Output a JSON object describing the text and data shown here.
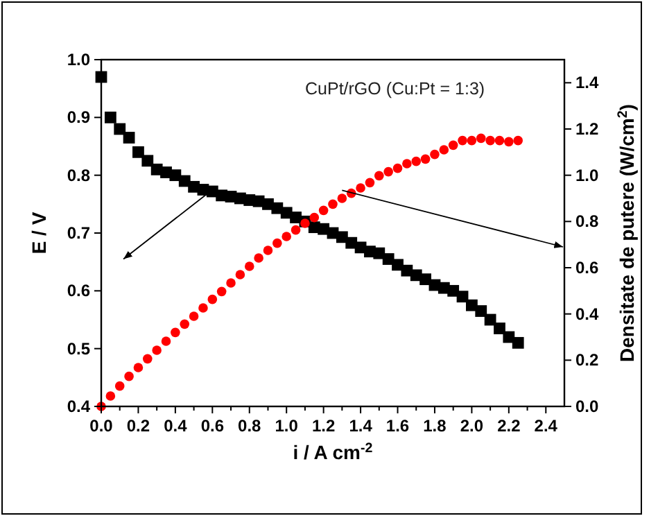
{
  "chart_data": {
    "type": "scatter",
    "xlabel": "i / A cm$^{-2}$",
    "ylabel": "E / V",
    "y2label": "Densitate de putere (W/cm$^{2}$)",
    "annotations": [
      "CuPt/rGO (Cu:Pt = 1:3)"
    ],
    "x": [
      0,
      0.05,
      0.1,
      0.15,
      0.2,
      0.25,
      0.3,
      0.35,
      0.4,
      0.45,
      0.5,
      0.55,
      0.6,
      0.65,
      0.7,
      0.75,
      0.8,
      0.85,
      0.9,
      0.95,
      1.0,
      1.05,
      1.1,
      1.15,
      1.2,
      1.25,
      1.3,
      1.35,
      1.4,
      1.45,
      1.5,
      1.55,
      1.6,
      1.65,
      1.7,
      1.75,
      1.8,
      1.85,
      1.9,
      1.95,
      2.0,
      2.05,
      2.1,
      2.15,
      2.2,
      2.25
    ],
    "series": [
      {
        "color": "#000000",
        "marker": "square",
        "values": [
          0.97,
          0.9,
          0.88,
          0.865,
          0.84,
          0.825,
          0.81,
          0.805,
          0.8,
          0.79,
          0.78,
          0.775,
          0.772,
          0.765,
          0.763,
          0.76,
          0.757,
          0.755,
          0.75,
          0.743,
          0.735,
          0.727,
          0.72,
          0.71,
          0.707,
          0.7,
          0.693,
          0.683,
          0.675,
          0.668,
          0.665,
          0.655,
          0.645,
          0.635,
          0.627,
          0.62,
          0.61,
          0.605,
          0.6,
          0.59,
          0.575,
          0.565,
          0.55,
          0.535,
          0.52,
          0.51
        ]
      },
      {
        "color": "#ff0000",
        "marker": "circle",
        "axis": "y2",
        "values": [
          0,
          0.045,
          0.088,
          0.13,
          0.168,
          0.206,
          0.243,
          0.282,
          0.32,
          0.356,
          0.39,
          0.426,
          0.463,
          0.497,
          0.534,
          0.57,
          0.606,
          0.642,
          0.675,
          0.706,
          0.735,
          0.763,
          0.792,
          0.817,
          0.848,
          0.875,
          0.9,
          0.922,
          0.945,
          0.968,
          0.998,
          1.015,
          1.03,
          1.05,
          1.06,
          1.07,
          1.09,
          1.11,
          1.13,
          1.15,
          1.15,
          1.16,
          1.15,
          1.15,
          1.145,
          1.15
        ]
      }
    ],
    "xlim": [
      0,
      2.5
    ],
    "xticks": [
      {
        "value": 0,
        "label": "0.0"
      },
      {
        "value": 0.2,
        "label": "0.2"
      },
      0.4,
      0.6,
      0.8,
      {
        "value": 1,
        "label": "1.0"
      },
      1.2,
      1.4,
      1.6,
      1.8,
      {
        "value": 2,
        "label": "2.0"
      },
      2.2,
      2.4
    ],
    "ylim": [
      0.4,
      1.0
    ],
    "yticks": [
      0.4,
      0.5,
      0.6,
      0.7,
      0.8,
      0.9,
      {
        "value": 1,
        "label": "1.0"
      }
    ],
    "y2lim": [
      0,
      1.5
    ],
    "y2ticks": [
      {
        "value": 0,
        "label": "0.0"
      },
      0.2,
      0.4,
      0.6,
      0.8,
      {
        "value": 1,
        "label": "1.0"
      },
      1.2,
      1.4
    ]
  }
}
